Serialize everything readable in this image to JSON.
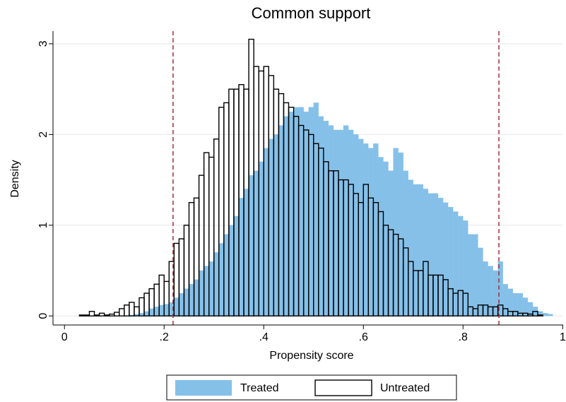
{
  "chart_data": {
    "type": "histogram",
    "title": "Common support",
    "xlabel": "Propensity score",
    "ylabel": "Density",
    "bins": [
      0.03,
      0.04,
      0.05,
      0.06,
      0.07,
      0.08,
      0.09,
      0.1,
      0.11,
      0.12,
      0.13,
      0.14,
      0.15,
      0.16,
      0.17,
      0.18,
      0.19,
      0.2,
      0.21,
      0.22,
      0.23,
      0.24,
      0.25,
      0.26,
      0.27,
      0.28,
      0.29,
      0.3,
      0.31,
      0.32,
      0.33,
      0.34,
      0.35,
      0.36,
      0.37,
      0.38,
      0.39,
      0.4,
      0.41,
      0.42,
      0.43,
      0.44,
      0.45,
      0.46,
      0.47,
      0.48,
      0.49,
      0.5,
      0.51,
      0.52,
      0.53,
      0.54,
      0.55,
      0.56,
      0.57,
      0.58,
      0.59,
      0.6,
      0.61,
      0.62,
      0.63,
      0.64,
      0.65,
      0.66,
      0.67,
      0.68,
      0.69,
      0.7,
      0.71,
      0.72,
      0.73,
      0.74,
      0.75,
      0.76,
      0.77,
      0.78,
      0.79,
      0.8,
      0.81,
      0.82,
      0.83,
      0.84,
      0.85,
      0.86,
      0.87,
      0.88,
      0.89,
      0.9,
      0.91,
      0.92,
      0.93,
      0.94,
      0.95,
      0.96,
      0.97,
      0.98
    ],
    "series": [
      {
        "name": "Treated",
        "color": "#85c0e9",
        "style": "filled",
        "values": [
          0,
          0,
          0,
          0,
          0,
          0,
          0,
          0,
          0,
          0,
          0.01,
          0.02,
          0.03,
          0.05,
          0.08,
          0.1,
          0.12,
          0.13,
          0.15,
          0.2,
          0.25,
          0.3,
          0.35,
          0.4,
          0.5,
          0.55,
          0.6,
          0.7,
          0.8,
          0.9,
          1.0,
          1.1,
          1.3,
          1.4,
          1.55,
          1.6,
          1.7,
          1.85,
          1.95,
          2.0,
          2.1,
          2.2,
          2.25,
          2.3,
          2.3,
          2.25,
          2.3,
          2.35,
          2.2,
          2.15,
          2.1,
          2.05,
          2.05,
          2.1,
          2.05,
          2.0,
          1.95,
          1.9,
          1.85,
          1.9,
          1.75,
          1.7,
          1.6,
          1.85,
          1.8,
          1.6,
          1.5,
          1.45,
          1.45,
          1.4,
          1.35,
          1.35,
          1.3,
          1.25,
          1.2,
          1.15,
          1.1,
          1.05,
          0.9,
          0.9,
          0.75,
          0.6,
          0.55,
          0.5,
          0.6,
          0.35,
          0.3,
          0.25,
          0.25,
          0.2,
          0.15,
          0.1,
          0.05,
          0.03,
          0.02
        ]
      },
      {
        "name": "Untreated",
        "color": "#000000",
        "style": "outline",
        "values": [
          0.01,
          0.01,
          0.05,
          0.01,
          0.03,
          0.01,
          0.02,
          0.04,
          0.08,
          0.12,
          0.15,
          0.1,
          0.2,
          0.25,
          0.3,
          0.35,
          0.45,
          0.38,
          0.6,
          0.8,
          0.85,
          1.0,
          1.25,
          1.3,
          1.55,
          1.8,
          1.75,
          1.95,
          2.3,
          2.35,
          2.5,
          2.5,
          2.55,
          2.5,
          3.05,
          2.75,
          2.7,
          2.75,
          2.65,
          2.5,
          2.45,
          2.35,
          2.3,
          2.2,
          2.1,
          2.05,
          2.0,
          1.9,
          1.85,
          1.7,
          1.6,
          1.6,
          1.5,
          1.5,
          1.45,
          1.35,
          1.25,
          1.45,
          1.3,
          1.25,
          1.15,
          1.0,
          0.95,
          0.9,
          0.85,
          0.75,
          0.6,
          0.5,
          0.5,
          0.6,
          0.45,
          0.45,
          0.45,
          0.4,
          0.3,
          0.25,
          0.28,
          0.25,
          0.1,
          0.08,
          0.12,
          0.12,
          0.1,
          0.1,
          0.12,
          0.08,
          0.05,
          0.05,
          0.03,
          0.03,
          0.02,
          0.05,
          0.01,
          0,
          0
        ]
      }
    ],
    "vlines": [
      0.218,
      0.872
    ],
    "vline_color": "#a0303a",
    "xlim": [
      -0.023,
      1.001
    ],
    "ylim": [
      -0.1,
      3.14
    ],
    "xticks": [
      0,
      {
        "value": 0.2,
        "label": ".2"
      },
      {
        "value": 0.4,
        "label": ".4"
      },
      {
        "value": 0.6,
        "label": ".6"
      },
      {
        "value": 0.8,
        "label": ".8"
      },
      1
    ],
    "yticks": [
      0,
      1,
      2,
      3
    ],
    "grid": true,
    "legend": "bottom"
  }
}
